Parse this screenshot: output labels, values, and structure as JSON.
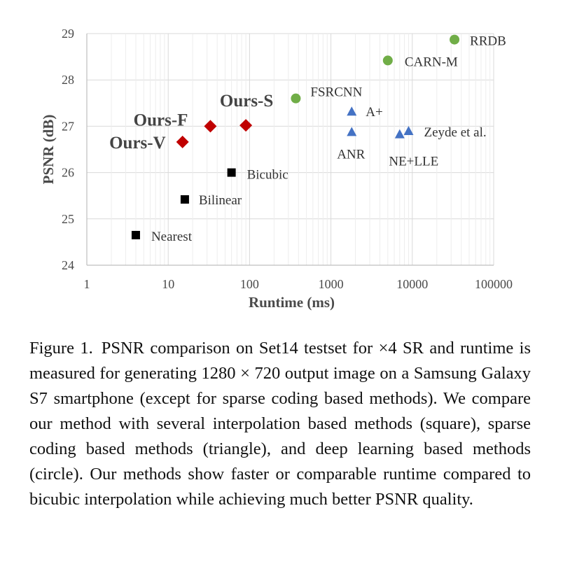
{
  "chart_data": {
    "type": "scatter",
    "xlabel": "Runtime (ms)",
    "ylabel": "PSNR (dB)",
    "x_scale": "log",
    "xlim": [
      1,
      100000
    ],
    "ylim": [
      24,
      29
    ],
    "x_ticks": [
      "1",
      "10",
      "100",
      "1000",
      "10000",
      "100000"
    ],
    "y_ticks": [
      "24",
      "25",
      "26",
      "27",
      "28",
      "29"
    ],
    "grid": true,
    "points": [
      {
        "label": "Nearest",
        "x": 4,
        "y": 24.65,
        "shape": "square",
        "color": "#000000"
      },
      {
        "label": "Bilinear",
        "x": 16,
        "y": 25.42,
        "shape": "square",
        "color": "#000000"
      },
      {
        "label": "Bicubic",
        "x": 60,
        "y": 26.0,
        "shape": "square",
        "color": "#000000"
      },
      {
        "label": "Ours-V",
        "x": 15,
        "y": 26.66,
        "shape": "diamond",
        "color": "#c00000"
      },
      {
        "label": "Ours-F",
        "x": 33,
        "y": 27.0,
        "shape": "diamond",
        "color": "#c00000"
      },
      {
        "label": "Ours-S",
        "x": 90,
        "y": 27.02,
        "shape": "diamond",
        "color": "#c00000"
      },
      {
        "label": "ANR",
        "x": 1800,
        "y": 26.88,
        "shape": "triangle",
        "color": "#4472c4"
      },
      {
        "label": "A+",
        "x": 1800,
        "y": 27.32,
        "shape": "triangle",
        "color": "#4472c4"
      },
      {
        "label": "NE+LLE",
        "x": 7000,
        "y": 26.83,
        "shape": "triangle",
        "color": "#4472c4"
      },
      {
        "label": "Zeyde et al.",
        "x": 9000,
        "y": 26.9,
        "shape": "triangle",
        "color": "#4472c4"
      },
      {
        "label": "FSRCNN",
        "x": 370,
        "y": 27.6,
        "shape": "circle",
        "color": "#70ad47"
      },
      {
        "label": "CARN-M",
        "x": 5000,
        "y": 28.42,
        "shape": "circle",
        "color": "#70ad47"
      },
      {
        "label": "RRDB",
        "x": 33000,
        "y": 28.87,
        "shape": "circle",
        "color": "#70ad47"
      }
    ]
  },
  "caption": {
    "number": "Figure 1.",
    "text": "PSNR comparison on Set14 testset for ×4 SR and runtime is measured for generating 1280 × 720 output image on a Samsung Galaxy S7 smartphone (except for sparse coding based methods). We compare our method with several interpolation based methods (square), sparse coding based methods (triangle), and deep learning based methods (circle). Our methods show faster or comparable runtime compared to bicubic interpolation while achieving much better PSNR quality."
  }
}
